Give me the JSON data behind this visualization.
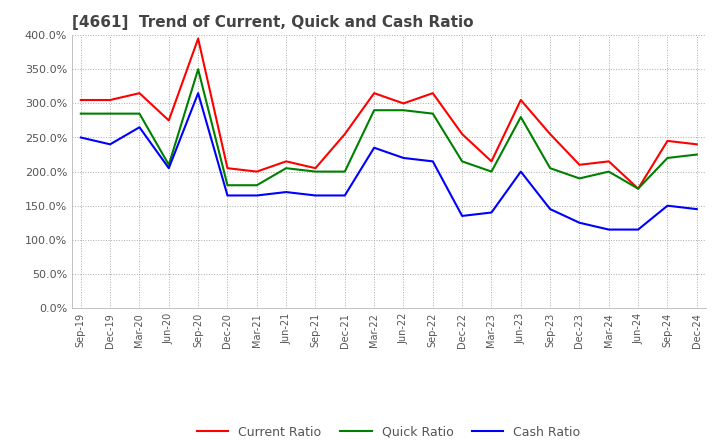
{
  "title": "[4661]  Trend of Current, Quick and Cash Ratio",
  "xlabel_labels": [
    "Sep-19",
    "Dec-19",
    "Mar-20",
    "Jun-20",
    "Sep-20",
    "Dec-20",
    "Mar-21",
    "Jun-21",
    "Sep-21",
    "Dec-21",
    "Mar-22",
    "Jun-22",
    "Sep-22",
    "Dec-22",
    "Mar-23",
    "Jun-23",
    "Sep-23",
    "Dec-23",
    "Mar-24",
    "Jun-24",
    "Sep-24",
    "Dec-24"
  ],
  "current_ratio": [
    305,
    305,
    315,
    275,
    395,
    205,
    200,
    215,
    205,
    255,
    315,
    300,
    315,
    255,
    215,
    305,
    255,
    210,
    215,
    175,
    245,
    240
  ],
  "quick_ratio": [
    285,
    285,
    285,
    210,
    350,
    180,
    180,
    205,
    200,
    200,
    290,
    290,
    285,
    215,
    200,
    280,
    205,
    190,
    200,
    175,
    220,
    225
  ],
  "cash_ratio": [
    250,
    240,
    265,
    205,
    315,
    165,
    165,
    170,
    165,
    165,
    235,
    220,
    215,
    135,
    140,
    200,
    145,
    125,
    115,
    115,
    150,
    145
  ],
  "current_color": "#FF0000",
  "quick_color": "#008000",
  "cash_color": "#0000FF",
  "ylim": [
    0,
    400
  ],
  "yticks": [
    0,
    50,
    100,
    150,
    200,
    250,
    300,
    350,
    400
  ],
  "background_color": "#FFFFFF",
  "grid_color": "#AAAAAA",
  "title_color": "#444444",
  "legend_labels": [
    "Current Ratio",
    "Quick Ratio",
    "Cash Ratio"
  ]
}
